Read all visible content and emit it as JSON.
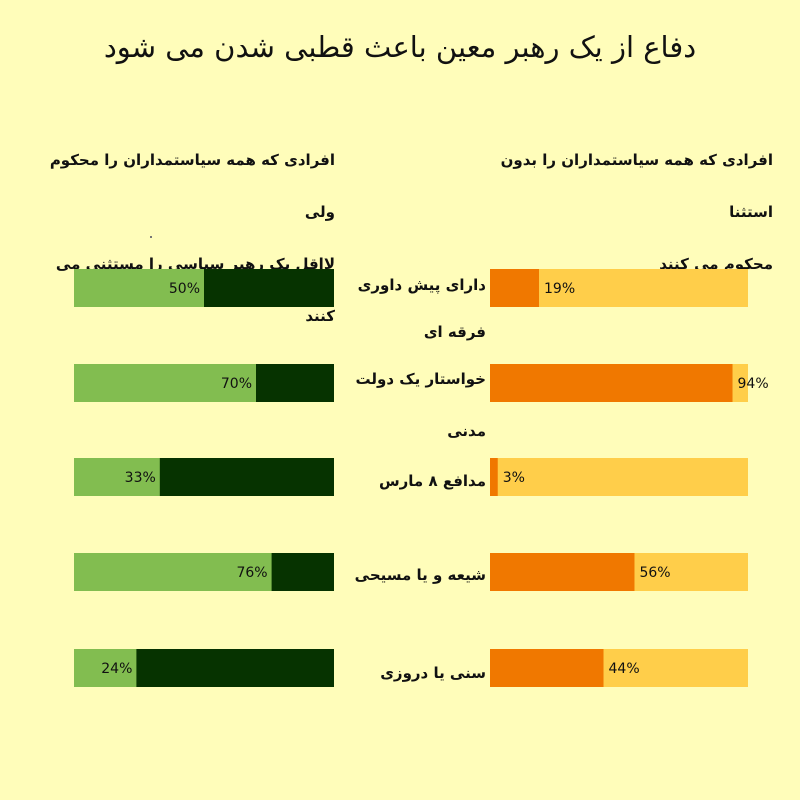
{
  "title": "دفاع از یک رهبر معین باعث قطبی شدن می شود",
  "columns": {
    "right_header_line1": "افرادی که همه سیاستمداران را بدون استثنا",
    "right_header_line2": "محکوم می کنند",
    "left_header_line1": "افرادی که همه سیاستمداران را محکوم ولی",
    "left_header_line2": "لااقل یک رهبر سیاسی را مستثنی می کنند"
  },
  "categories": [
    {
      "line1": "دارای پیش داوری",
      "line2": "فرقه ای"
    },
    {
      "line1": "خواستار یک دولت",
      "line2": "مدنی"
    },
    {
      "line1": "مدافع ۸ مارس",
      "line2": ""
    },
    {
      "line1": "شیعه و یا مسیحی",
      "line2": ""
    },
    {
      "line1": "سنی یا دروزی",
      "line2": ""
    }
  ],
  "colors": {
    "right_fill": "#f07800",
    "right_track": "#ffce4a",
    "left_fill": "#82bd50",
    "left_track": "#063300"
  },
  "chart_data": {
    "type": "bar",
    "orientation": "horizontal",
    "categories": [
      "دارای پیش داوری فرقه ای",
      "خواستار یک دولت مدنی",
      "مدافع ۸ مارس",
      "شیعه و یا مسیحی",
      "سنی یا دروزی"
    ],
    "series": [
      {
        "name": "افرادی که همه سیاستمداران را بدون استثنا محکوم می کنند",
        "values": [
          19,
          94,
          3,
          56,
          44
        ],
        "labels": [
          "19%",
          "94%",
          "3%",
          "56%",
          "44%"
        ]
      },
      {
        "name": "افرادی که همه سیاستمداران را محکوم ولی لااقل یک رهبر سیاسی را مستثنی می کنند",
        "values": [
          50,
          70,
          33,
          76,
          24
        ],
        "labels": [
          "50%",
          "70%",
          "33%",
          "76%",
          "24%"
        ]
      }
    ],
    "xlim": [
      0,
      100
    ]
  }
}
